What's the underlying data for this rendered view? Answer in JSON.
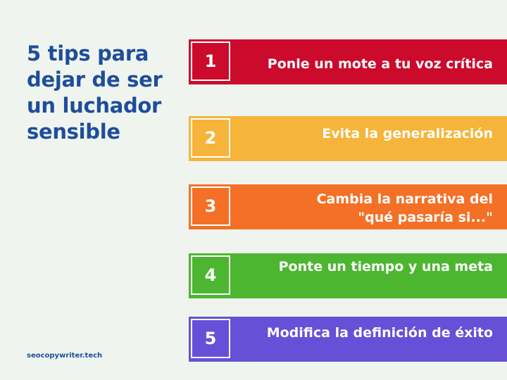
{
  "title_lines": [
    "5 tips para",
    "dejar de ser",
    "un luchador",
    "sensible"
  ],
  "footer": "seocopywriter.tech",
  "colors": {
    "background": "#eff5ee",
    "title": "#1e4d9b",
    "bar_1": "#cc0a2c",
    "bar_2": "#f6b43a",
    "bar_3": "#f37026",
    "bar_4": "#4cb630",
    "bar_5": "#6650d8"
  },
  "tips": [
    {
      "number": "1",
      "lines": [
        "Ponle un mote  a tu voz crítica"
      ]
    },
    {
      "number": "2",
      "lines": [
        "Evita la generalización"
      ]
    },
    {
      "number": "3",
      "lines": [
        "Cambia la narrativa del ",
        "\"qué pasaría si...\""
      ]
    },
    {
      "number": "4",
      "lines": [
        "Ponte un tiempo y una meta"
      ]
    },
    {
      "number": "5",
      "lines": [
        "Modifica la definición de éxito"
      ]
    }
  ]
}
